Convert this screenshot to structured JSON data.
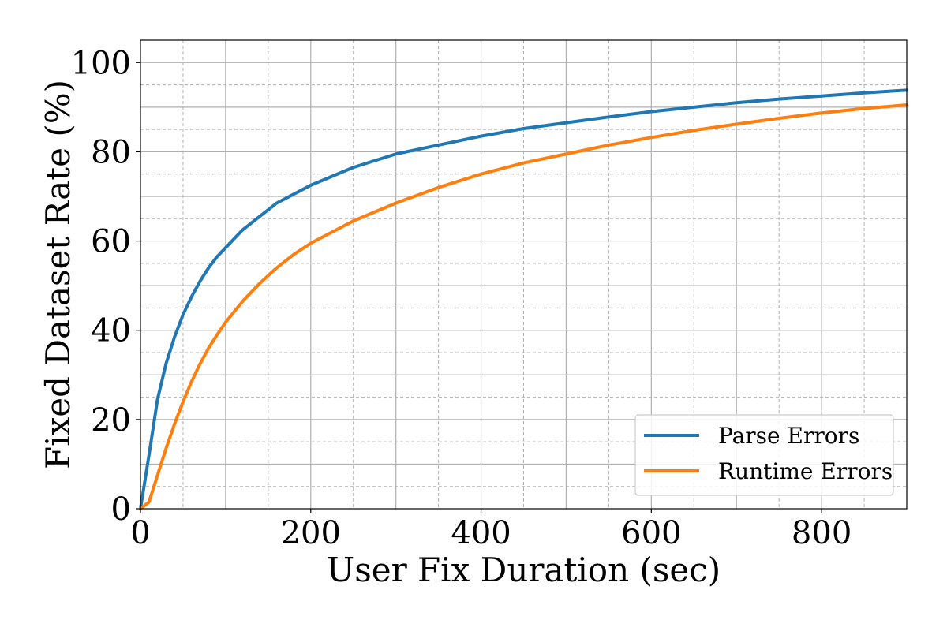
{
  "chart_data": {
    "type": "line",
    "title": "",
    "xlabel": "User Fix Duration (sec)",
    "ylabel": "Fixed Dataset Rate (%)",
    "xlim": [
      0,
      900
    ],
    "ylim": [
      0,
      105
    ],
    "xticks": [
      0,
      200,
      400,
      600,
      800
    ],
    "xtick_labels": [
      "0",
      "200",
      "400",
      "600",
      "800"
    ],
    "yticks": [
      0,
      20,
      40,
      60,
      80,
      100
    ],
    "ytick_labels": [
      "0",
      "20",
      "40",
      "60",
      "80",
      "100"
    ],
    "grid": true,
    "minor_grid": true,
    "legend_position": "lower-right",
    "series": [
      {
        "name": "Parse Errors",
        "color": "#1f77b4",
        "x": [
          0,
          10,
          20,
          30,
          40,
          50,
          60,
          70,
          80,
          90,
          100,
          120,
          140,
          160,
          180,
          200,
          250,
          300,
          350,
          400,
          450,
          500,
          550,
          600,
          650,
          700,
          750,
          800,
          850,
          900
        ],
        "y": [
          0,
          12,
          24.5,
          32.5,
          38.5,
          43.5,
          47.5,
          51,
          54,
          56.5,
          58.5,
          62.5,
          65.5,
          68.5,
          70.5,
          72.5,
          76.5,
          79.5,
          81.5,
          83.5,
          85.2,
          86.5,
          87.8,
          89,
          90,
          91,
          91.8,
          92.5,
          93.2,
          93.8
        ]
      },
      {
        "name": "Runtime Errors",
        "color": "#ff7f0e",
        "x": [
          0,
          10,
          20,
          30,
          40,
          50,
          60,
          70,
          80,
          90,
          100,
          120,
          140,
          160,
          180,
          200,
          250,
          300,
          350,
          400,
          450,
          500,
          550,
          600,
          650,
          700,
          750,
          800,
          850,
          900
        ],
        "y": [
          0,
          1.5,
          7.5,
          13.5,
          19,
          24,
          28.5,
          32.5,
          36,
          39,
          41.8,
          46.5,
          50.5,
          54,
          57,
          59.5,
          64.5,
          68.5,
          72,
          75,
          77.5,
          79.5,
          81.5,
          83.2,
          84.8,
          86.2,
          87.5,
          88.7,
          89.7,
          90.5
        ]
      }
    ]
  }
}
